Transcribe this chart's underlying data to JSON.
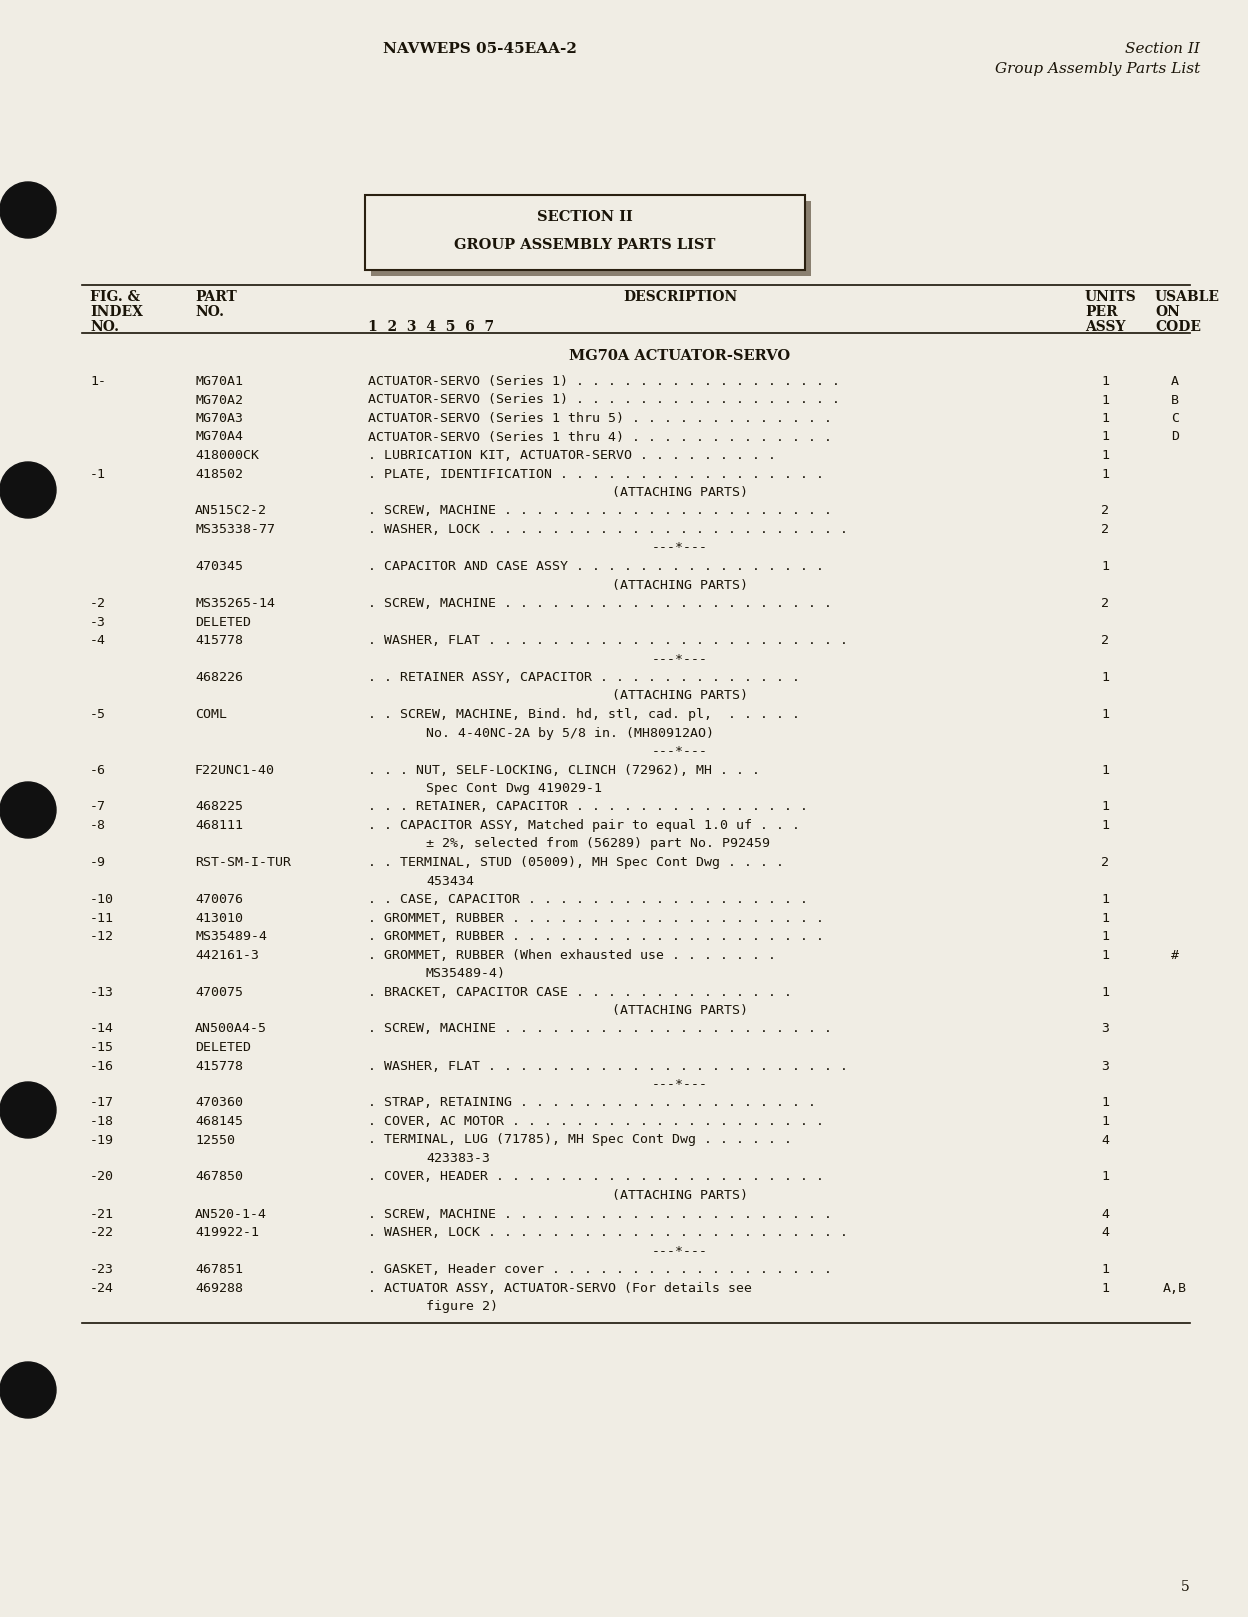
{
  "bg_color": "#f0ede4",
  "text_color": "#1a1408",
  "page_num": "5",
  "header_left": "NAVWEPS 05-45EAA-2",
  "header_right_line1": "Section II",
  "header_right_line2": "Group Assembly Parts List",
  "section_box_line1": "SECTION II",
  "section_box_line2": "GROUP ASSEMBLY PARTS LIST",
  "section_title": "MG70A ACTUATOR-SERVO",
  "rows": [
    {
      "idx": "1-",
      "part": "MG70A1",
      "desc": "ACTUATOR-SERVO (Series 1) . . . . . . . . . . . . . . . . .",
      "qty": "1",
      "code": "A",
      "cont_indent": 0
    },
    {
      "idx": "",
      "part": "MG70A2",
      "desc": "ACTUATOR-SERVO (Series 1) . . . . . . . . . . . . . . . . .",
      "qty": "1",
      "code": "B",
      "cont_indent": 0
    },
    {
      "idx": "",
      "part": "MG70A3",
      "desc": "ACTUATOR-SERVO (Series 1 thru 5) . . . . . . . . . . . . .",
      "qty": "1",
      "code": "C",
      "cont_indent": 0
    },
    {
      "idx": "",
      "part": "MG70A4",
      "desc": "ACTUATOR-SERVO (Series 1 thru 4) . . . . . . . . . . . . .",
      "qty": "1",
      "code": "D",
      "cont_indent": 0
    },
    {
      "idx": "",
      "part": "418000CK",
      "desc": ". LUBRICATION KIT, ACTUATOR-SERVO . . . . . . . . .",
      "qty": "1",
      "code": "",
      "cont_indent": 0
    },
    {
      "idx": "-1",
      "part": "418502",
      "desc": ". PLATE, IDENTIFICATION . . . . . . . . . . . . . . . . .",
      "qty": "1",
      "code": "",
      "cont_indent": 0
    },
    {
      "idx": "",
      "part": "",
      "desc": "(ATTACHING PARTS)",
      "qty": "",
      "code": "",
      "cont_indent": 0,
      "center": true
    },
    {
      "idx": "",
      "part": "AN515C2-2",
      "desc": ". SCREW, MACHINE . . . . . . . . . . . . . . . . . . . . .",
      "qty": "2",
      "code": "",
      "cont_indent": 0
    },
    {
      "idx": "",
      "part": "MS35338-77",
      "desc": ". WASHER, LOCK . . . . . . . . . . . . . . . . . . . . . . .",
      "qty": "2",
      "code": "",
      "cont_indent": 0
    },
    {
      "idx": "",
      "part": "",
      "desc": "---*---",
      "qty": "",
      "code": "",
      "cont_indent": 0,
      "center": true
    },
    {
      "idx": "",
      "part": "470345",
      "desc": ". CAPACITOR AND CASE ASSY . . . . . . . . . . . . . . . .",
      "qty": "1",
      "code": "",
      "cont_indent": 0
    },
    {
      "idx": "",
      "part": "",
      "desc": "(ATTACHING PARTS)",
      "qty": "",
      "code": "",
      "cont_indent": 0,
      "center": true
    },
    {
      "idx": "-2",
      "part": "MS35265-14",
      "desc": ". SCREW, MACHINE . . . . . . . . . . . . . . . . . . . . .",
      "qty": "2",
      "code": "",
      "cont_indent": 0
    },
    {
      "idx": "-3",
      "part": "DELETED",
      "desc": "",
      "qty": "",
      "code": "",
      "cont_indent": 0
    },
    {
      "idx": "-4",
      "part": "415778",
      "desc": ". WASHER, FLAT . . . . . . . . . . . . . . . . . . . . . . .",
      "qty": "2",
      "code": "",
      "cont_indent": 0
    },
    {
      "idx": "",
      "part": "",
      "desc": "---*---",
      "qty": "",
      "code": "",
      "cont_indent": 0,
      "center": true
    },
    {
      "idx": "",
      "part": "468226",
      "desc": ". . RETAINER ASSY, CAPACITOR . . . . . . . . . . . . .",
      "qty": "1",
      "code": "",
      "cont_indent": 0
    },
    {
      "idx": "",
      "part": "",
      "desc": "(ATTACHING PARTS)",
      "qty": "",
      "code": "",
      "cont_indent": 0,
      "center": true
    },
    {
      "idx": "-5",
      "part": "COML",
      "desc": ". . SCREW, MACHINE, Bind. hd, stl, cad. pl,  . . . . .",
      "qty": "1",
      "code": "",
      "cont_indent": 1
    },
    {
      "idx": "",
      "part": "",
      "desc": "No. 4-40NC-2A by 5/8 in. (MH80912AO)",
      "qty": "",
      "code": "",
      "cont_indent": 1,
      "continuation": true
    },
    {
      "idx": "",
      "part": "",
      "desc": "---*---",
      "qty": "",
      "code": "",
      "cont_indent": 0,
      "center": true
    },
    {
      "idx": "-6",
      "part": "F22UNC1-40",
      "desc": ". . . NUT, SELF-LOCKING, CLINCH (72962), MH . . .",
      "qty": "1",
      "code": "",
      "cont_indent": 1
    },
    {
      "idx": "",
      "part": "",
      "desc": "Spec Cont Dwg 419029-1",
      "qty": "",
      "code": "",
      "cont_indent": 1,
      "continuation": true
    },
    {
      "idx": "-7",
      "part": "468225",
      "desc": ". . . RETAINER, CAPACITOR . . . . . . . . . . . . . . .",
      "qty": "1",
      "code": "",
      "cont_indent": 0
    },
    {
      "idx": "-8",
      "part": "468111",
      "desc": ". . CAPACITOR ASSY, Matched pair to equal 1.0 uf . . .",
      "qty": "1",
      "code": "",
      "cont_indent": 1
    },
    {
      "idx": "",
      "part": "",
      "desc": "± 2%, selected from (56289) part No. P92459",
      "qty": "",
      "code": "",
      "cont_indent": 1,
      "continuation": true
    },
    {
      "idx": "-9",
      "part": "RST-SM-I-TUR",
      "desc": ". . TERMINAL, STUD (05009), MH Spec Cont Dwg . . . .",
      "qty": "2",
      "code": "",
      "cont_indent": 1
    },
    {
      "idx": "",
      "part": "",
      "desc": "453434",
      "qty": "",
      "code": "",
      "cont_indent": 1,
      "continuation": true
    },
    {
      "idx": "-10",
      "part": "470076",
      "desc": ". . CASE, CAPACITOR . . . . . . . . . . . . . . . . . .",
      "qty": "1",
      "code": "",
      "cont_indent": 0
    },
    {
      "idx": "-11",
      "part": "413010",
      "desc": ". GROMMET, RUBBER . . . . . . . . . . . . . . . . . . . .",
      "qty": "1",
      "code": "",
      "cont_indent": 0
    },
    {
      "idx": "-12",
      "part": "MS35489-4",
      "desc": ". GROMMET, RUBBER . . . . . . . . . . . . . . . . . . . .",
      "qty": "1",
      "code": "",
      "cont_indent": 0
    },
    {
      "idx": "",
      "part": "442161-3",
      "desc": ". GROMMET, RUBBER (When exhausted use . . . . . . .",
      "qty": "1",
      "code": "#",
      "cont_indent": 0
    },
    {
      "idx": "",
      "part": "",
      "desc": "MS35489-4)",
      "qty": "",
      "code": "",
      "cont_indent": 1,
      "continuation": true
    },
    {
      "idx": "-13",
      "part": "470075",
      "desc": ". BRACKET, CAPACITOR CASE . . . . . . . . . . . . . .",
      "qty": "1",
      "code": "",
      "cont_indent": 0
    },
    {
      "idx": "",
      "part": "",
      "desc": "(ATTACHING PARTS)",
      "qty": "",
      "code": "",
      "cont_indent": 0,
      "center": true
    },
    {
      "idx": "-14",
      "part": "AN500A4-5",
      "desc": ". SCREW, MACHINE . . . . . . . . . . . . . . . . . . . . .",
      "qty": "3",
      "code": "",
      "cont_indent": 0
    },
    {
      "idx": "-15",
      "part": "DELETED",
      "desc": "",
      "qty": "",
      "code": "",
      "cont_indent": 0
    },
    {
      "idx": "-16",
      "part": "415778",
      "desc": ". WASHER, FLAT . . . . . . . . . . . . . . . . . . . . . . .",
      "qty": "3",
      "code": "",
      "cont_indent": 0
    },
    {
      "idx": "",
      "part": "",
      "desc": "---*---",
      "qty": "",
      "code": "",
      "cont_indent": 0,
      "center": true
    },
    {
      "idx": "-17",
      "part": "470360",
      "desc": ". STRAP, RETAINING . . . . . . . . . . . . . . . . . . .",
      "qty": "1",
      "code": "",
      "cont_indent": 0
    },
    {
      "idx": "-18",
      "part": "468145",
      "desc": ". COVER, AC MOTOR . . . . . . . . . . . . . . . . . . . .",
      "qty": "1",
      "code": "",
      "cont_indent": 0
    },
    {
      "idx": "-19",
      "part": "12550",
      "desc": ". TERMINAL, LUG (71785), MH Spec Cont Dwg . . . . . .",
      "qty": "4",
      "code": "",
      "cont_indent": 1
    },
    {
      "idx": "",
      "part": "",
      "desc": "423383-3",
      "qty": "",
      "code": "",
      "cont_indent": 1,
      "continuation": true
    },
    {
      "idx": "-20",
      "part": "467850",
      "desc": ". COVER, HEADER . . . . . . . . . . . . . . . . . . . . .",
      "qty": "1",
      "code": "",
      "cont_indent": 0
    },
    {
      "idx": "",
      "part": "",
      "desc": "(ATTACHING PARTS)",
      "qty": "",
      "code": "",
      "cont_indent": 0,
      "center": true
    },
    {
      "idx": "-21",
      "part": "AN520-1-4",
      "desc": ". SCREW, MACHINE . . . . . . . . . . . . . . . . . . . . .",
      "qty": "4",
      "code": "",
      "cont_indent": 0
    },
    {
      "idx": "-22",
      "part": "419922-1",
      "desc": ". WASHER, LOCK . . . . . . . . . . . . . . . . . . . . . . .",
      "qty": "4",
      "code": "",
      "cont_indent": 0
    },
    {
      "idx": "",
      "part": "",
      "desc": "---*---",
      "qty": "",
      "code": "",
      "cont_indent": 0,
      "center": true
    },
    {
      "idx": "-23",
      "part": "467851",
      "desc": ". GASKET, Header cover . . . . . . . . . . . . . . . . . .",
      "qty": "1",
      "code": "",
      "cont_indent": 0
    },
    {
      "idx": "-24",
      "part": "469288",
      "desc": ". ACTUATOR ASSY, ACTUATOR-SERVO (For details see",
      "qty": "1",
      "code": "A,B",
      "cont_indent": 1
    },
    {
      "idx": "",
      "part": "",
      "desc": "figure 2)",
      "qty": "",
      "code": "",
      "cont_indent": 1,
      "continuation": true
    }
  ]
}
